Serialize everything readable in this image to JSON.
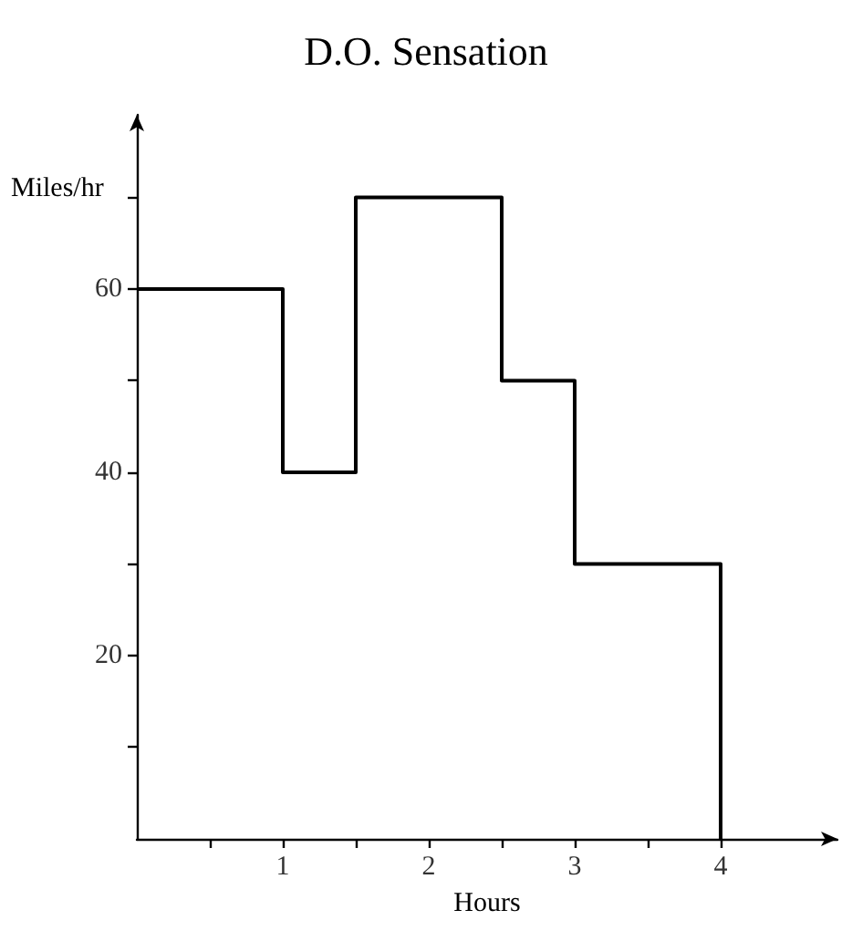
{
  "chart_data": {
    "type": "step",
    "title": "D.O. Sensation",
    "xlabel": "Hours",
    "ylabel": "Miles/hr",
    "x": [
      0,
      1,
      1.5,
      2.5,
      3,
      4
    ],
    "series": [
      {
        "color": "#000000",
        "values": [
          60,
          40,
          70,
          50,
          30,
          0
        ]
      }
    ],
    "xlim": [
      0,
      4.8
    ],
    "xticks": [
      {
        "value": 0.5,
        "label": null
      },
      1,
      {
        "value": 1.5,
        "label": null
      },
      2,
      {
        "value": 2.5,
        "label": null
      },
      3,
      {
        "value": 3.5,
        "label": null
      },
      4
    ],
    "ylim": [
      0,
      79
    ],
    "yticks": [
      {
        "value": 10,
        "label": null
      },
      20,
      {
        "value": 30,
        "label": null
      },
      40,
      {
        "value": 50,
        "label": null
      },
      60,
      {
        "value": 70,
        "label": null
      }
    ],
    "grid": false,
    "marker": "none",
    "line_style": "solid"
  }
}
